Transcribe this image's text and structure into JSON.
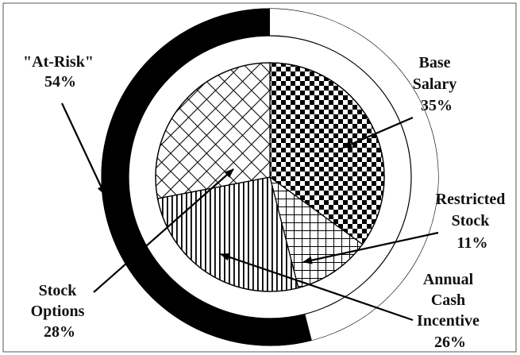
{
  "chart_data": {
    "type": "pie",
    "style": "two-ring donut",
    "colors": {
      "ink": "#000000",
      "paper": "#ffffff",
      "frame": "#555555"
    },
    "outer_ring": {
      "segments": [
        {
          "label_lines": [
            "\"At-Risk\"",
            "54%"
          ],
          "value": 54,
          "fill": "solid-black"
        },
        {
          "label_lines": [],
          "value": 46,
          "fill": "white"
        }
      ]
    },
    "inner_pie": {
      "slices": [
        {
          "label_lines": [
            "Base",
            "Salary",
            "35%"
          ],
          "value": 35,
          "pattern": "checkerboard"
        },
        {
          "label_lines": [
            "Restricted",
            "Stock",
            "11%"
          ],
          "value": 11,
          "pattern": "grid"
        },
        {
          "label_lines": [
            "Annual",
            "Cash",
            "Incentive",
            "26%"
          ],
          "value": 26,
          "pattern": "vertical-stripes"
        },
        {
          "label_lines": [
            "Stock",
            "Options",
            "28%"
          ],
          "value": 28,
          "pattern": "diagonal-crosshatch"
        }
      ]
    }
  }
}
